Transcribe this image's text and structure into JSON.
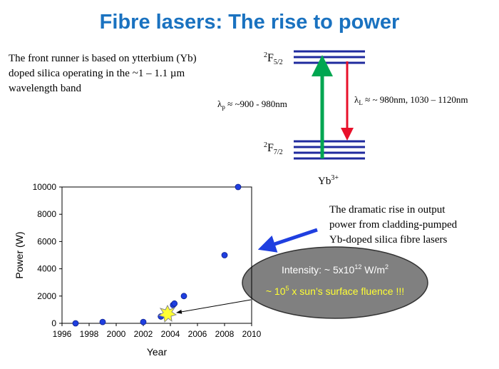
{
  "title": "Fibre lasers:  The rise to power",
  "intro": [
    "The front runner is based on ytterbium (Yb)",
    "doped silica operating in the ~1 – 1.1 µm",
    "wavelength band"
  ],
  "levels": {
    "upper": {
      "sup": "2",
      "main": "F",
      "sub": "5/2"
    },
    "lower": {
      "sup": "2",
      "main": "F",
      "sub": "7/2"
    },
    "ion": {
      "main": "Yb",
      "sup": "3+"
    },
    "pump": {
      "main": "λ",
      "sub": "p",
      "rest": " ≈ ~900 - 980nm"
    },
    "laser": {
      "main": "λ",
      "sub": "L",
      "rest": " ≈ ~ 980nm, 1030 – 1120nm"
    }
  },
  "note": [
    "The dramatic rise in output",
    "power from cladding-pumped",
    "Yb-doped silica fibre lasers"
  ],
  "callout": {
    "intensity": {
      "main": "Intensity: ~ 5x10",
      "sup": "12",
      "unit": " W/m",
      "unit_sup": "2"
    },
    "fluence": {
      "main": "~ 10",
      "sup": "5",
      "rest": " x sun’s surface fluence !!!"
    }
  },
  "chart_data": {
    "type": "scatter",
    "x": [
      1997,
      1999,
      2002,
      2003.3,
      2004.2,
      2004.3,
      2005,
      2008,
      2009
    ],
    "values": [
      0,
      100,
      100,
      500,
      1350,
      1450,
      2000,
      5000,
      10000
    ],
    "color": "#1f3fe0",
    "xlabel": "Year",
    "ylabel": "Power (W)",
    "xlim": [
      1996,
      2010
    ],
    "xticks": [
      1996,
      1998,
      2000,
      2002,
      2004,
      2006,
      2008,
      2010
    ],
    "ylim": [
      0,
      10000
    ],
    "yticks": [
      0,
      2000,
      4000,
      6000,
      8000,
      10000
    ],
    "grid": false
  }
}
